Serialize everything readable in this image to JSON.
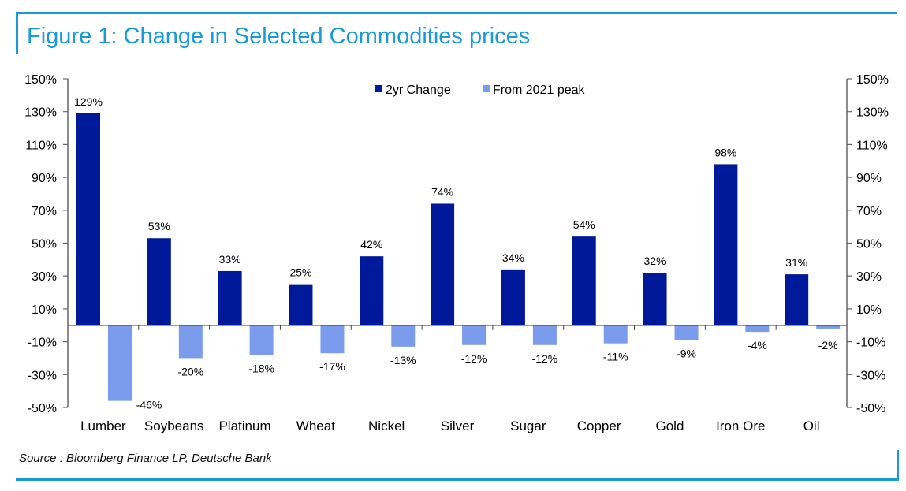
{
  "title": "Figure 1: Change in Selected Commodities prices",
  "source": "Source : Bloomberg Finance LP, Deutsche Bank",
  "colors": {
    "frame": "#1a9ad9",
    "series1": "#00189a",
    "series2": "#7b9cec"
  },
  "chart_data": {
    "type": "bar",
    "title": "Figure 1: Change in Selected Commodities prices",
    "xlabel": "",
    "ylabel": "",
    "ylim": [
      -50,
      150
    ],
    "yticks": [
      150,
      130,
      110,
      90,
      70,
      50,
      30,
      10,
      -10,
      -30,
      -50
    ],
    "ytick_labels": [
      "150%",
      "130%",
      "110%",
      "90%",
      "70%",
      "50%",
      "30%",
      "10%",
      "-10%",
      "-30%",
      "-50%"
    ],
    "secondary_y_axis": true,
    "legend_position": "top-center",
    "categories": [
      "Lumber",
      "Soybeans",
      "Platinum",
      "Wheat",
      "Nickel",
      "Silver",
      "Sugar",
      "Copper",
      "Gold",
      "Iron Ore",
      "Oil"
    ],
    "series": [
      {
        "name": "2yr Change",
        "values": [
          129,
          53,
          33,
          25,
          42,
          74,
          34,
          54,
          32,
          98,
          31
        ],
        "labels": [
          "129%",
          "53%",
          "33%",
          "25%",
          "42%",
          "74%",
          "34%",
          "54%",
          "32%",
          "98%",
          "31%"
        ]
      },
      {
        "name": "From 2021 peak",
        "values": [
          -46,
          -20,
          -18,
          -17,
          -13,
          -12,
          -12,
          -11,
          -9,
          -4,
          -2
        ],
        "labels": [
          "-46%",
          "-20%",
          "-18%",
          "-17%",
          "-13%",
          "-12%",
          "-12%",
          "-11%",
          "-9%",
          "-4%",
          "-2%"
        ]
      }
    ]
  }
}
